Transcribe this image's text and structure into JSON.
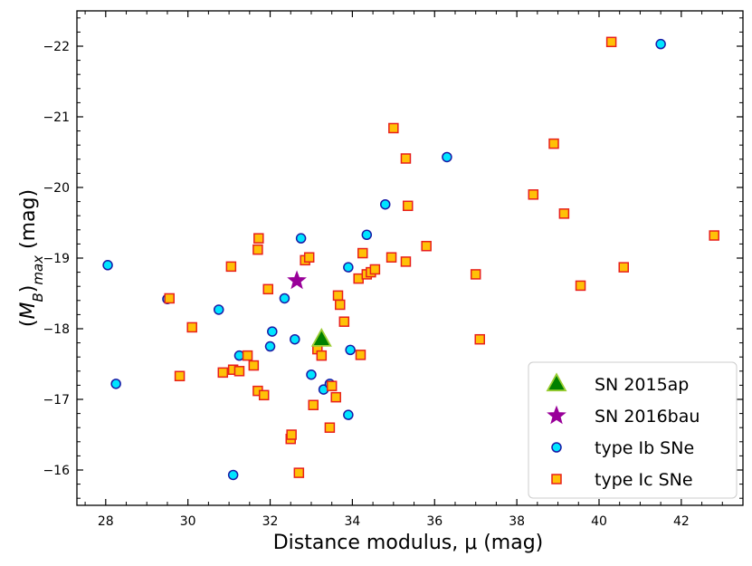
{
  "chart_data": {
    "type": "scatter",
    "xlabel": "Distance modulus, μ (mag)",
    "ylabel": "(M_B)_max (mag)",
    "xlim": [
      27.3,
      43.5
    ],
    "ylim": [
      -15.5,
      -22.5
    ],
    "y_inverted": true,
    "x_ticks": [
      28,
      30,
      32,
      34,
      36,
      38,
      40,
      42
    ],
    "y_ticks": [
      -16,
      -17,
      -18,
      -19,
      -20,
      -21,
      -22
    ],
    "legend_position": "lower-right",
    "series": [
      {
        "name": "SN 2015ap",
        "marker": "triangle",
        "fill": "#008000",
        "edge": "#9acd32",
        "points": [
          [
            33.25,
            -17.85
          ]
        ]
      },
      {
        "name": "SN 2016bau",
        "marker": "star",
        "fill": "#990099",
        "edge": "#990099",
        "points": [
          [
            32.65,
            -18.68
          ]
        ]
      },
      {
        "name": "type Ib SNe",
        "marker": "circle",
        "fill": "#00e5ff",
        "edge": "#1a1aa6",
        "points": [
          [
            28.05,
            -18.9
          ],
          [
            28.25,
            -17.22
          ],
          [
            29.5,
            -18.42
          ],
          [
            30.75,
            -18.27
          ],
          [
            31.1,
            -15.93
          ],
          [
            31.25,
            -17.62
          ],
          [
            32.0,
            -17.75
          ],
          [
            32.05,
            -17.96
          ],
          [
            32.35,
            -18.43
          ],
          [
            32.6,
            -17.85
          ],
          [
            32.75,
            -19.28
          ],
          [
            33.0,
            -17.35
          ],
          [
            33.3,
            -17.14
          ],
          [
            33.45,
            -17.22
          ],
          [
            33.9,
            -18.87
          ],
          [
            33.9,
            -16.78
          ],
          [
            33.95,
            -17.7
          ],
          [
            34.35,
            -19.33
          ],
          [
            34.8,
            -19.76
          ],
          [
            36.3,
            -20.43
          ],
          [
            41.5,
            -22.03
          ]
        ]
      },
      {
        "name": "type Ic SNe",
        "marker": "square",
        "fill": "#ffc107",
        "edge": "#e8201a",
        "points": [
          [
            29.55,
            -18.43
          ],
          [
            29.8,
            -17.33
          ],
          [
            30.1,
            -18.02
          ],
          [
            30.85,
            -17.38
          ],
          [
            31.05,
            -18.88
          ],
          [
            31.1,
            -17.42
          ],
          [
            31.25,
            -17.4
          ],
          [
            31.45,
            -17.62
          ],
          [
            31.6,
            -17.48
          ],
          [
            31.7,
            -19.12
          ],
          [
            31.7,
            -17.12
          ],
          [
            31.72,
            -19.28
          ],
          [
            31.85,
            -17.06
          ],
          [
            31.95,
            -18.56
          ],
          [
            32.5,
            -16.44
          ],
          [
            32.52,
            -16.5
          ],
          [
            32.7,
            -15.96
          ],
          [
            32.85,
            -18.97
          ],
          [
            32.95,
            -19.01
          ],
          [
            33.05,
            -16.92
          ],
          [
            33.15,
            -17.71
          ],
          [
            33.25,
            -17.62
          ],
          [
            33.45,
            -16.6
          ],
          [
            33.5,
            -17.19
          ],
          [
            33.6,
            -17.03
          ],
          [
            33.65,
            -18.47
          ],
          [
            33.7,
            -18.34
          ],
          [
            33.8,
            -18.1
          ],
          [
            34.15,
            -18.71
          ],
          [
            34.2,
            -17.63
          ],
          [
            34.25,
            -19.07
          ],
          [
            34.35,
            -18.77
          ],
          [
            34.45,
            -18.8
          ],
          [
            34.55,
            -18.84
          ],
          [
            34.95,
            -19.01
          ],
          [
            35.0,
            -20.84
          ],
          [
            35.3,
            -20.41
          ],
          [
            35.3,
            -18.95
          ],
          [
            35.35,
            -19.74
          ],
          [
            35.8,
            -19.17
          ],
          [
            37.0,
            -18.77
          ],
          [
            37.1,
            -17.85
          ],
          [
            38.4,
            -19.9
          ],
          [
            38.9,
            -20.62
          ],
          [
            39.15,
            -19.63
          ],
          [
            39.55,
            -18.61
          ],
          [
            40.3,
            -22.06
          ],
          [
            40.6,
            -18.87
          ],
          [
            42.8,
            -19.32
          ]
        ]
      }
    ]
  }
}
